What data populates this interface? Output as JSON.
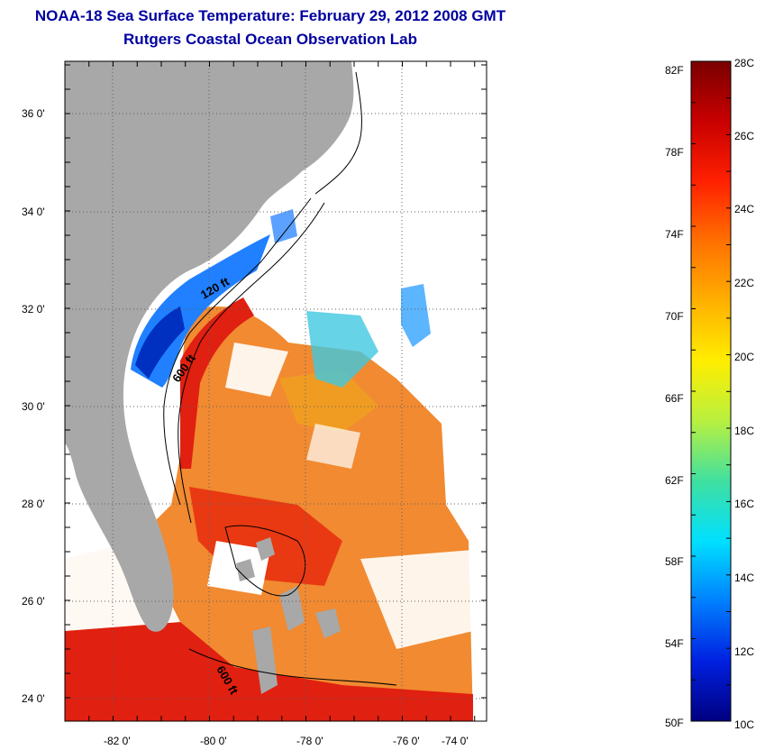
{
  "title": "NOAA-18 Sea Surface Temperature:  February 29, 2012 2008 GMT",
  "subtitle": "Rutgers Coastal Ocean Observation Lab",
  "map": {
    "lon_labels": [
      "-82 0'",
      "-80 0'",
      "-78 0'",
      "-76 0'",
      "-74 0'"
    ],
    "lat_labels": [
      "36 0'",
      "34 0'",
      "32 0'",
      "30 0'",
      "28 0'",
      "26 0'",
      "24 0'"
    ],
    "contour_labels": [
      "120 ft",
      "600 ft",
      "600 ft"
    ],
    "land_color": "#a8a8a8"
  },
  "colorbar": {
    "fahrenheit_labels": [
      "82F",
      "78F",
      "74F",
      "70F",
      "66F",
      "62F",
      "58F",
      "54F",
      "50F"
    ],
    "celsius_labels": [
      "28C",
      "26C",
      "24C",
      "22C",
      "20C",
      "18C",
      "16C",
      "14C",
      "12C",
      "10C"
    ],
    "colors": [
      "#7a0000",
      "#c80000",
      "#ff2000",
      "#ff7000",
      "#ffb000",
      "#ffee00",
      "#b8f040",
      "#40e0a0",
      "#00e0ff",
      "#0080ff",
      "#0020e0",
      "#000080"
    ]
  }
}
